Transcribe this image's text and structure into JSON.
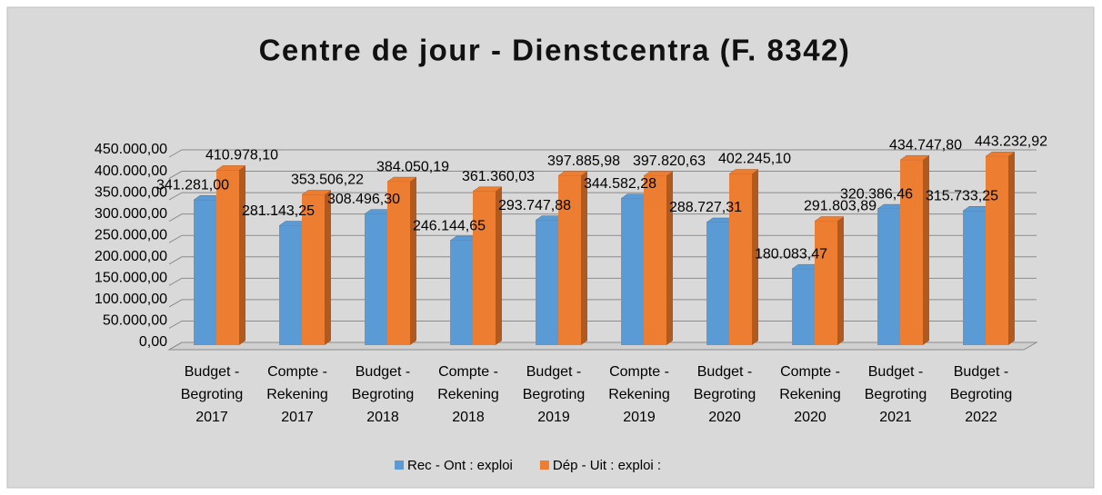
{
  "chart_data": {
    "type": "bar3d",
    "title": "Centre de jour - Dienstcentra (F. 8342)",
    "categories": [
      [
        "Budget -",
        "Begroting",
        "2017"
      ],
      [
        "Compte -",
        "Rekening",
        "2017"
      ],
      [
        "Budget -",
        "Begroting",
        "2018"
      ],
      [
        "Compte -",
        "Rekening",
        "2018"
      ],
      [
        "Budget -",
        "Begroting",
        "2019"
      ],
      [
        "Compte -",
        "Rekening",
        "2019"
      ],
      [
        "Budget -",
        "Begroting",
        "2020"
      ],
      [
        "Compte -",
        "Rekening",
        "2020"
      ],
      [
        "Budget -",
        "Begroting",
        "2021"
      ],
      [
        "Budget -",
        "Begroting",
        "2022"
      ]
    ],
    "series": [
      {
        "name": "Rec - Ont : exploi",
        "color": "#5b9bd5",
        "values": [
          341281.0,
          281143.25,
          308496.3,
          246144.65,
          293747.88,
          344582.28,
          288727.31,
          180083.47,
          320386.46,
          315733.25
        ],
        "value_labels": [
          "341.281,00",
          "281.143,25",
          "308.496,30",
          "246.144,65",
          "293.747,88",
          "344.582,28",
          "288.727,31",
          "180.083,47",
          "320.386,46",
          "315.733,25"
        ]
      },
      {
        "name": "Dép - Uit : exploi :",
        "color": "#ed7d31",
        "values": [
          410978.1,
          353506.22,
          384050.19,
          361360.03,
          397885.98,
          397820.63,
          402245.1,
          291803.89,
          434747.8,
          443232.92
        ],
        "value_labels": [
          "410.978,10",
          "353.506,22",
          "384.050,19",
          "361.360,03",
          "397.885,98",
          "397.820,63",
          "402.245,10",
          "291.803,89",
          "434.747,80",
          "443.232,92"
        ]
      }
    ],
    "ylim": [
      0,
      450000
    ],
    "yticks": [
      {
        "value": 0,
        "label": "0,00"
      },
      {
        "value": 50000,
        "label": "50.000,00"
      },
      {
        "value": 100000,
        "label": "100.000,00"
      },
      {
        "value": 150000,
        "label": "150.000,00"
      },
      {
        "value": 200000,
        "label": "200.000,00"
      },
      {
        "value": 250000,
        "label": "250.000,00"
      },
      {
        "value": 300000,
        "label": "300.000,00"
      },
      {
        "value": 350000,
        "label": "350.000,00"
      },
      {
        "value": 400000,
        "label": "400.000,00"
      },
      {
        "value": 450000,
        "label": "450.000,00"
      }
    ],
    "grid": true,
    "legend": "bottom"
  }
}
